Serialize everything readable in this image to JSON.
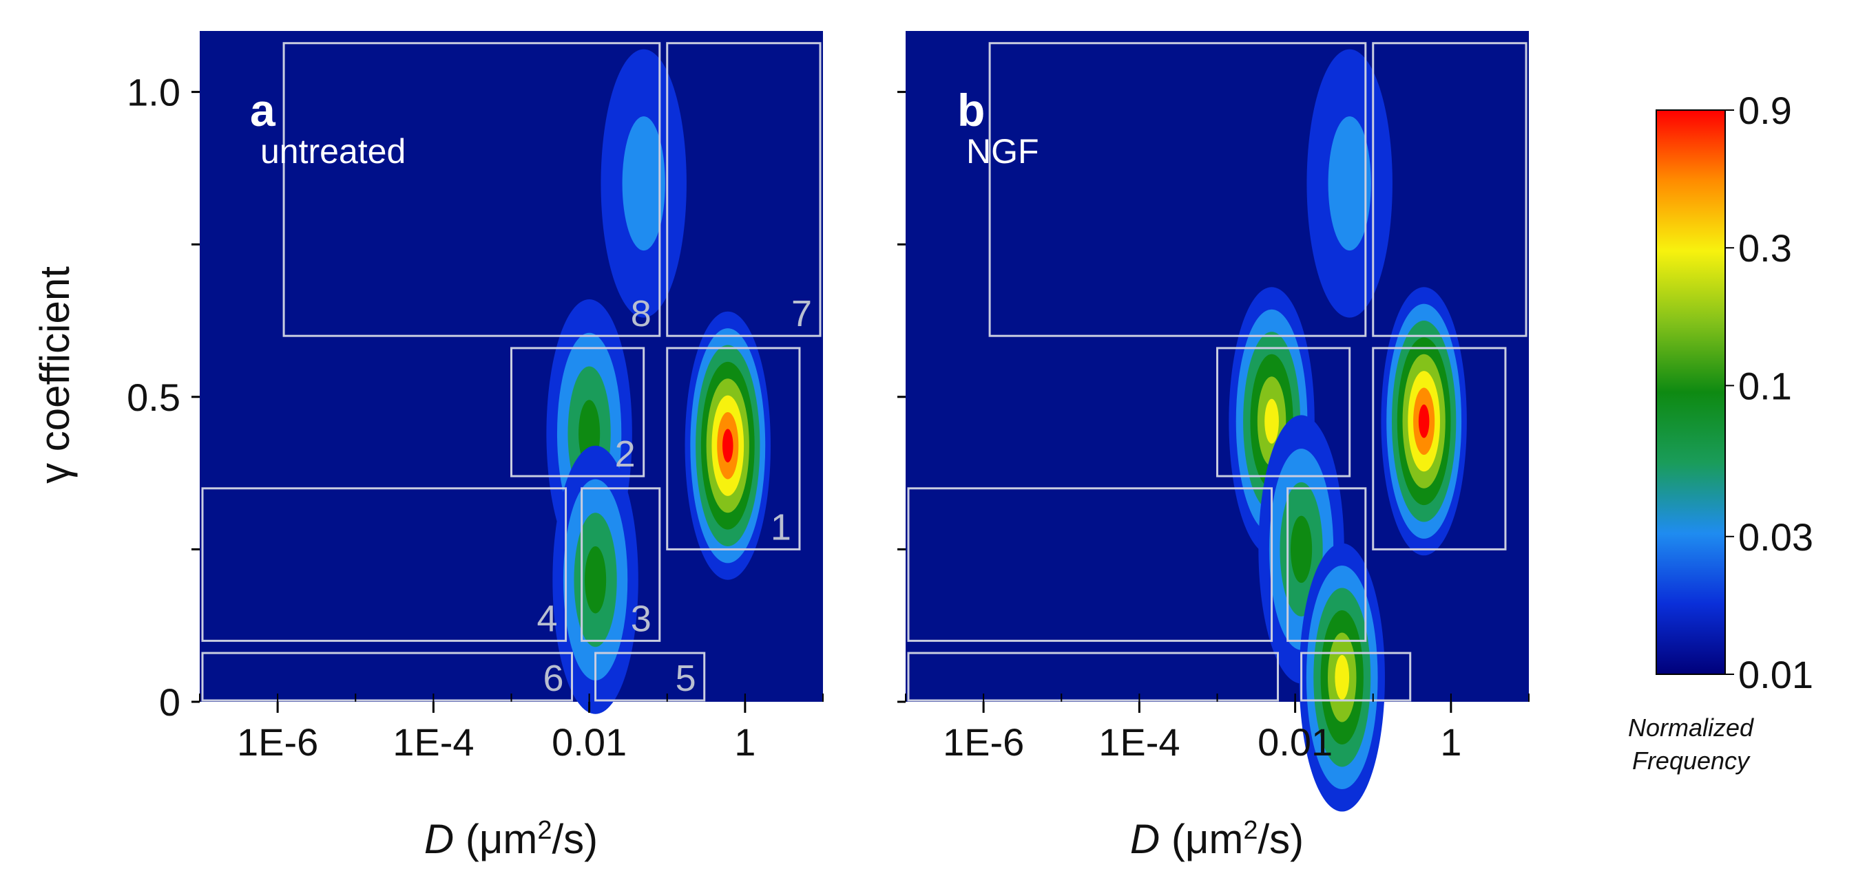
{
  "chart_data": [
    {
      "type": "heatmap",
      "panel": "a",
      "condition": "untreated",
      "xlabel": "D (μm²/s)",
      "ylabel": "γ coefficient",
      "x_scale": "log",
      "xlim": [
        1e-07,
        10
      ],
      "ylim": [
        0,
        1.1
      ],
      "x_ticks": [
        {
          "value": 1e-06,
          "label": "1E-6"
        },
        {
          "value": 0.0001,
          "label": "1E-4"
        },
        {
          "value": 0.01,
          "label": "0.01"
        },
        {
          "value": 1,
          "label": "1"
        }
      ],
      "y_ticks": [
        {
          "value": 0,
          "label": "0"
        },
        {
          "value": 0.5,
          "label": "0.5"
        },
        {
          "value": 1.0,
          "label": "1.0"
        }
      ],
      "hotspots": [
        {
          "D": 0.6,
          "gamma": 0.42,
          "frequency": 0.9
        },
        {
          "D": 0.01,
          "gamma": 0.44,
          "frequency": 0.1
        },
        {
          "D": 0.012,
          "gamma": 0.2,
          "frequency": 0.1
        },
        {
          "D": 0.05,
          "gamma": 0.85,
          "frequency": 0.03
        }
      ],
      "regions": [
        {
          "label": "1",
          "D": [
            0.1,
            5
          ],
          "gamma": [
            0.25,
            0.58
          ]
        },
        {
          "label": "2",
          "D": [
            0.001,
            0.05
          ],
          "gamma": [
            0.37,
            0.58
          ]
        },
        {
          "label": "3",
          "D": [
            0.008,
            0.08
          ],
          "gamma": [
            0.1,
            0.35
          ]
        },
        {
          "label": "4",
          "D": [
            1e-07,
            0.005
          ],
          "gamma": [
            0.1,
            0.35
          ]
        },
        {
          "label": "5",
          "D": [
            0.012,
            0.3
          ],
          "gamma": [
            0.0,
            0.08
          ]
        },
        {
          "label": "6",
          "D": [
            1e-07,
            0.006
          ],
          "gamma": [
            0.0,
            0.08
          ]
        },
        {
          "label": "7",
          "D": [
            0.1,
            10
          ],
          "gamma": [
            0.6,
            1.08
          ]
        },
        {
          "label": "8",
          "D": [
            1.2e-06,
            0.08
          ],
          "gamma": [
            0.6,
            1.08
          ]
        }
      ]
    },
    {
      "type": "heatmap",
      "panel": "b",
      "condition": "NGF",
      "xlabel": "D (μm²/s)",
      "ylabel": "",
      "x_scale": "log",
      "xlim": [
        1e-07,
        10
      ],
      "ylim": [
        0,
        1.1
      ],
      "x_ticks": [
        {
          "value": 1e-06,
          "label": "1E-6"
        },
        {
          "value": 0.0001,
          "label": "1E-4"
        },
        {
          "value": 0.01,
          "label": "0.01"
        },
        {
          "value": 1,
          "label": "1"
        }
      ],
      "y_ticks": [],
      "hotspots": [
        {
          "D": 0.45,
          "gamma": 0.46,
          "frequency": 0.9
        },
        {
          "D": 0.005,
          "gamma": 0.46,
          "frequency": 0.3
        },
        {
          "D": 0.012,
          "gamma": 0.25,
          "frequency": 0.1
        },
        {
          "D": 0.04,
          "gamma": 0.04,
          "frequency": 0.3
        },
        {
          "D": 0.05,
          "gamma": 0.85,
          "frequency": 0.03
        }
      ],
      "regions": [
        {
          "label": "",
          "D": [
            0.1,
            5
          ],
          "gamma": [
            0.25,
            0.58
          ]
        },
        {
          "label": "",
          "D": [
            0.001,
            0.05
          ],
          "gamma": [
            0.37,
            0.58
          ]
        },
        {
          "label": "",
          "D": [
            0.008,
            0.08
          ],
          "gamma": [
            0.1,
            0.35
          ]
        },
        {
          "label": "",
          "D": [
            1e-07,
            0.005
          ],
          "gamma": [
            0.1,
            0.35
          ]
        },
        {
          "label": "",
          "D": [
            0.012,
            0.3
          ],
          "gamma": [
            0.0,
            0.08
          ]
        },
        {
          "label": "",
          "D": [
            1e-07,
            0.006
          ],
          "gamma": [
            0.0,
            0.08
          ]
        },
        {
          "label": "",
          "D": [
            0.1,
            10
          ],
          "gamma": [
            0.6,
            1.08
          ]
        },
        {
          "label": "",
          "D": [
            1.2e-06,
            0.08
          ],
          "gamma": [
            0.6,
            1.08
          ]
        }
      ]
    }
  ],
  "colorbar": {
    "title_line1": "Normalized",
    "title_line2": "Frequency",
    "scale": "log",
    "range": [
      0.01,
      0.9
    ],
    "ticks": [
      {
        "value": 0.01,
        "label": "0.01"
      },
      {
        "value": 0.03,
        "label": "0.03"
      },
      {
        "value": 0.1,
        "label": "0.1"
      },
      {
        "value": 0.3,
        "label": "0.3"
      },
      {
        "value": 0.9,
        "label": "0.9"
      }
    ],
    "colors": [
      "#00007a",
      "#0a2fd9",
      "#1f8cf0",
      "#1a9c5a",
      "#0e8a12",
      "#84c21a",
      "#f7f20e",
      "#ff8c00",
      "#ff0000"
    ]
  },
  "background_color": "#00108a",
  "region_line_color": "#c9cde0"
}
